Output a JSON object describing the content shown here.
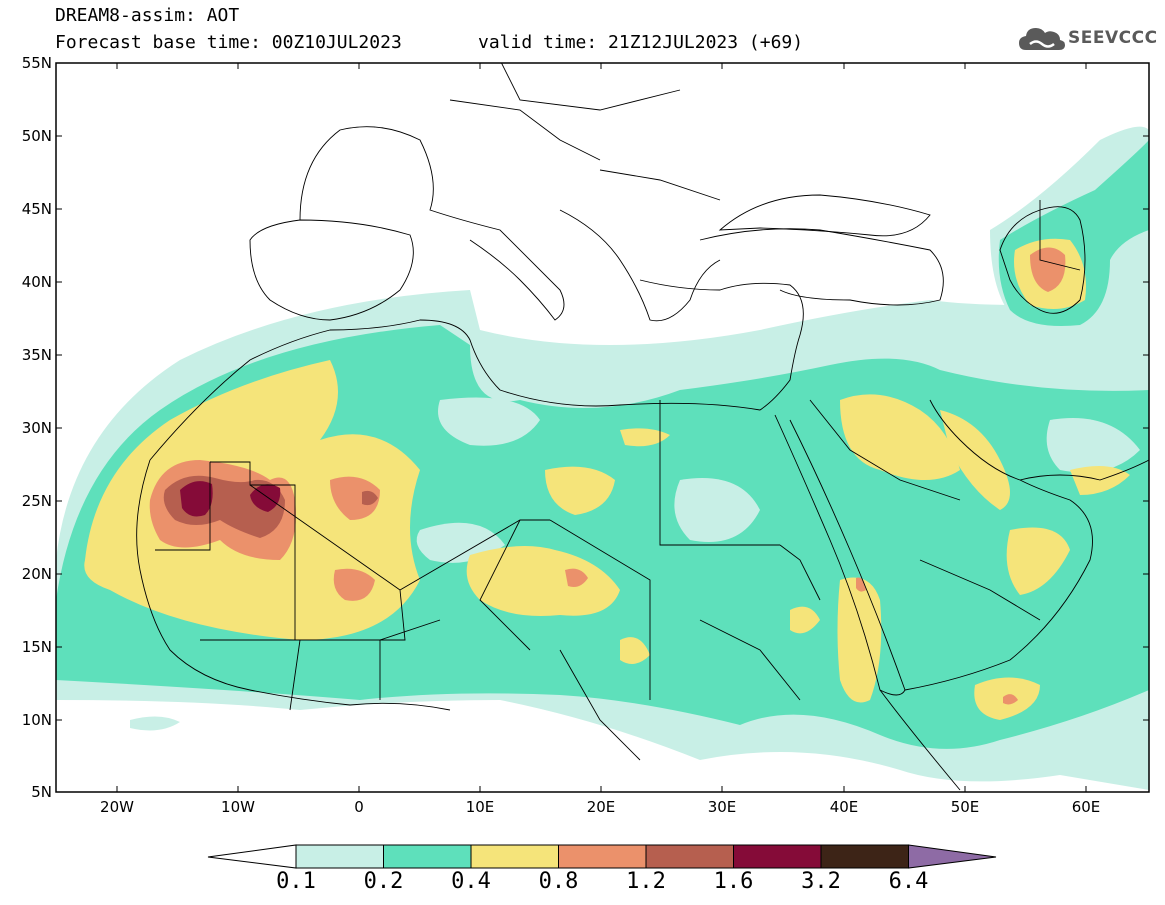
{
  "header": {
    "line1": "DREAM8-assim: AOT",
    "line2_base": "Forecast base time: 00Z10JUL2023",
    "line2_valid": "valid time: 21Z12JUL2023 (+69)"
  },
  "logo": {
    "text": "SEEVCCC",
    "icon": "cloud-icon"
  },
  "axes": {
    "lat_labels": [
      "55N",
      "50N",
      "45N",
      "40N",
      "35N",
      "30N",
      "25N",
      "20N",
      "15N",
      "10N",
      "5N"
    ],
    "lon_labels": [
      "20W",
      "10W",
      "0",
      "10E",
      "20E",
      "30E",
      "40E",
      "50E",
      "60E"
    ]
  },
  "colorbar": {
    "labels": [
      "0.1",
      "0.2",
      "0.4",
      "0.8",
      "1.2",
      "1.6",
      "3.2",
      "6.4"
    ],
    "colors": [
      "#ffffff",
      "#c8efe6",
      "#5ee0bb",
      "#f5e47a",
      "#eb916b",
      "#b65f4f",
      "#850b38",
      "#3d2417",
      "#8e6ba5"
    ]
  },
  "colors": {
    "level_0_1": "#c8efe6",
    "level_0_2": "#5ee0bb",
    "level_0_4": "#f5e47a",
    "level_0_8": "#eb916b",
    "level_1_2": "#b65f4f",
    "level_1_6": "#850b38"
  }
}
